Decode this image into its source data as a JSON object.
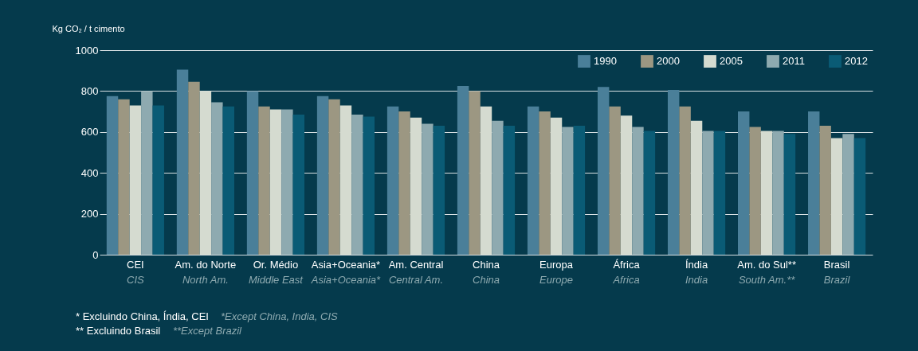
{
  "chart_data": {
    "type": "bar",
    "ylabel": "Kg CO₂ / t cimento",
    "categories": [
      "CEI\nCIS",
      "Am. do Norte\nNorth Am.",
      "Or. Médio\nMiddle East",
      "Asia+Oceania*\nAsia+Oceania*",
      "Am. Central\nCentral Am.",
      "China\nChina",
      "Europa\nEurope",
      "África\nAfrica",
      "Índia\nIndia",
      "Am. do Sul**\nSouth Am.**",
      "Brasil\nBrazil"
    ],
    "series": [
      {
        "name": "1990",
        "color": "#4a7f99",
        "values": [
          775,
          905,
          800,
          775,
          725,
          825,
          725,
          820,
          805,
          700,
          700
        ]
      },
      {
        "name": "2000",
        "color": "#9c9782",
        "values": [
          760,
          845,
          725,
          760,
          700,
          800,
          700,
          725,
          725,
          625,
          630
        ]
      },
      {
        "name": "2005",
        "color": "#d5dbd0",
        "values": [
          730,
          800,
          710,
          730,
          670,
          725,
          670,
          680,
          655,
          605,
          570
        ]
      },
      {
        "name": "2011",
        "color": "#8eaab0",
        "values": [
          800,
          745,
          710,
          685,
          640,
          655,
          625,
          625,
          605,
          605,
          590
        ]
      },
      {
        "name": "2012",
        "color": "#0a5b75",
        "values": [
          730,
          725,
          685,
          675,
          630,
          630,
          630,
          605,
          605,
          590,
          570
        ]
      }
    ],
    "ylim": [
      0,
      1000
    ],
    "yticks": [
      0,
      200,
      400,
      600,
      800,
      1000
    ],
    "grid": "y",
    "legend": "top right",
    "annotations": [
      "* Excluindo China, Índia, CEI",
      "*Except China, India, CIS",
      "** Excluindo Brasil",
      "**Except Brazil"
    ]
  }
}
